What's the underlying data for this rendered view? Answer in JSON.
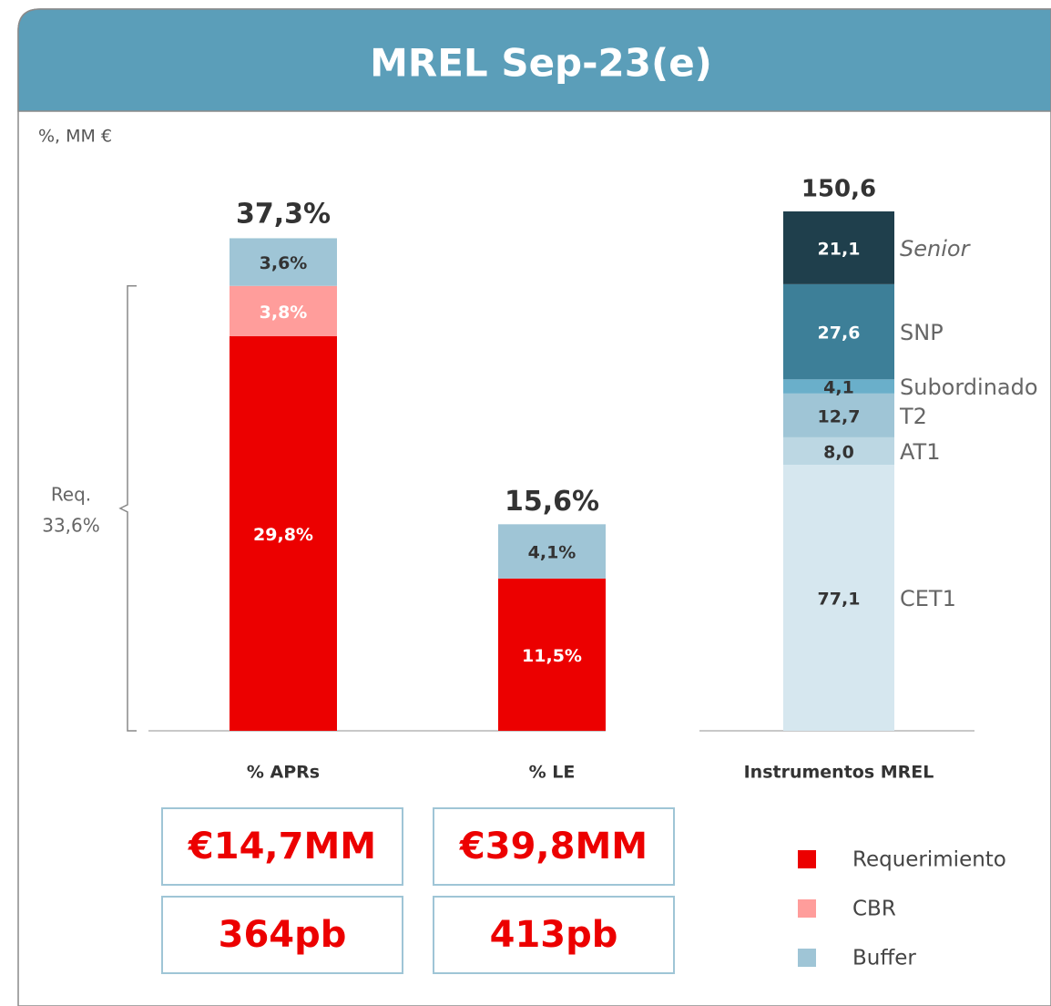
{
  "header": {
    "title": "MREL Sep-23(e)"
  },
  "unit_note": "%, MM €",
  "chart_data": [
    {
      "type": "stacked_bar",
      "categories": [
        "% APRs",
        "% LE"
      ],
      "series": [
        {
          "name": "Requerimiento",
          "color": "#ec0000",
          "label_color": "#ffffff",
          "values": [
            29.8,
            11.5
          ],
          "value_labels": [
            "29,8%",
            "11,5%"
          ]
        },
        {
          "name": "CBR",
          "color": "#ff9d9b",
          "label_color": "#ffffff",
          "values": [
            3.8,
            null
          ],
          "value_labels": [
            "3,8%",
            null
          ]
        },
        {
          "name": "Buffer",
          "color": "#9fc5d6",
          "label_color": "#333333",
          "values": [
            3.6,
            4.1
          ],
          "value_labels": [
            "3,6%",
            "4,1%"
          ]
        }
      ],
      "totals": [
        37.3,
        15.6
      ],
      "total_labels": [
        "37,3%",
        "15,6%"
      ],
      "bracket": {
        "label": "Req.",
        "value": 33.6,
        "value_label": "33,6%"
      },
      "legend": "bottom-right"
    },
    {
      "type": "stacked_bar",
      "categories": [
        "Instrumentos MREL"
      ],
      "series": [
        {
          "name": "CET1",
          "color": "#d6e7ef",
          "label_color": "#333333",
          "values": [
            77.1
          ],
          "value_labels": [
            "77,1"
          ]
        },
        {
          "name": "AT1",
          "color": "#bcd7e3",
          "label_color": "#333333",
          "values": [
            8.0
          ],
          "value_labels": [
            "8,0"
          ]
        },
        {
          "name": "T2",
          "color": "#9fc5d6",
          "label_color": "#333333",
          "values": [
            12.7
          ],
          "value_labels": [
            "12,7"
          ]
        },
        {
          "name": "Subordinado",
          "color": "#6aafca",
          "label_color": "#333333",
          "values": [
            4.1
          ],
          "value_labels": [
            "4,1"
          ]
        },
        {
          "name": "SNP",
          "color": "#3d7f98",
          "label_color": "#ffffff",
          "values": [
            27.6
          ],
          "value_labels": [
            "27,6"
          ]
        },
        {
          "name": "Senior",
          "color": "#1f3f4c",
          "label_color": "#ffffff",
          "font_style": "italic",
          "values": [
            21.1
          ],
          "value_labels": [
            "21,1"
          ]
        }
      ],
      "totals": [
        150.6
      ],
      "total_labels": [
        "150,6"
      ]
    }
  ],
  "summary_boxes": [
    {
      "amount": "€14,7MM",
      "spread": "364pb"
    },
    {
      "amount": "€39,8MM",
      "spread": "413pb"
    }
  ]
}
